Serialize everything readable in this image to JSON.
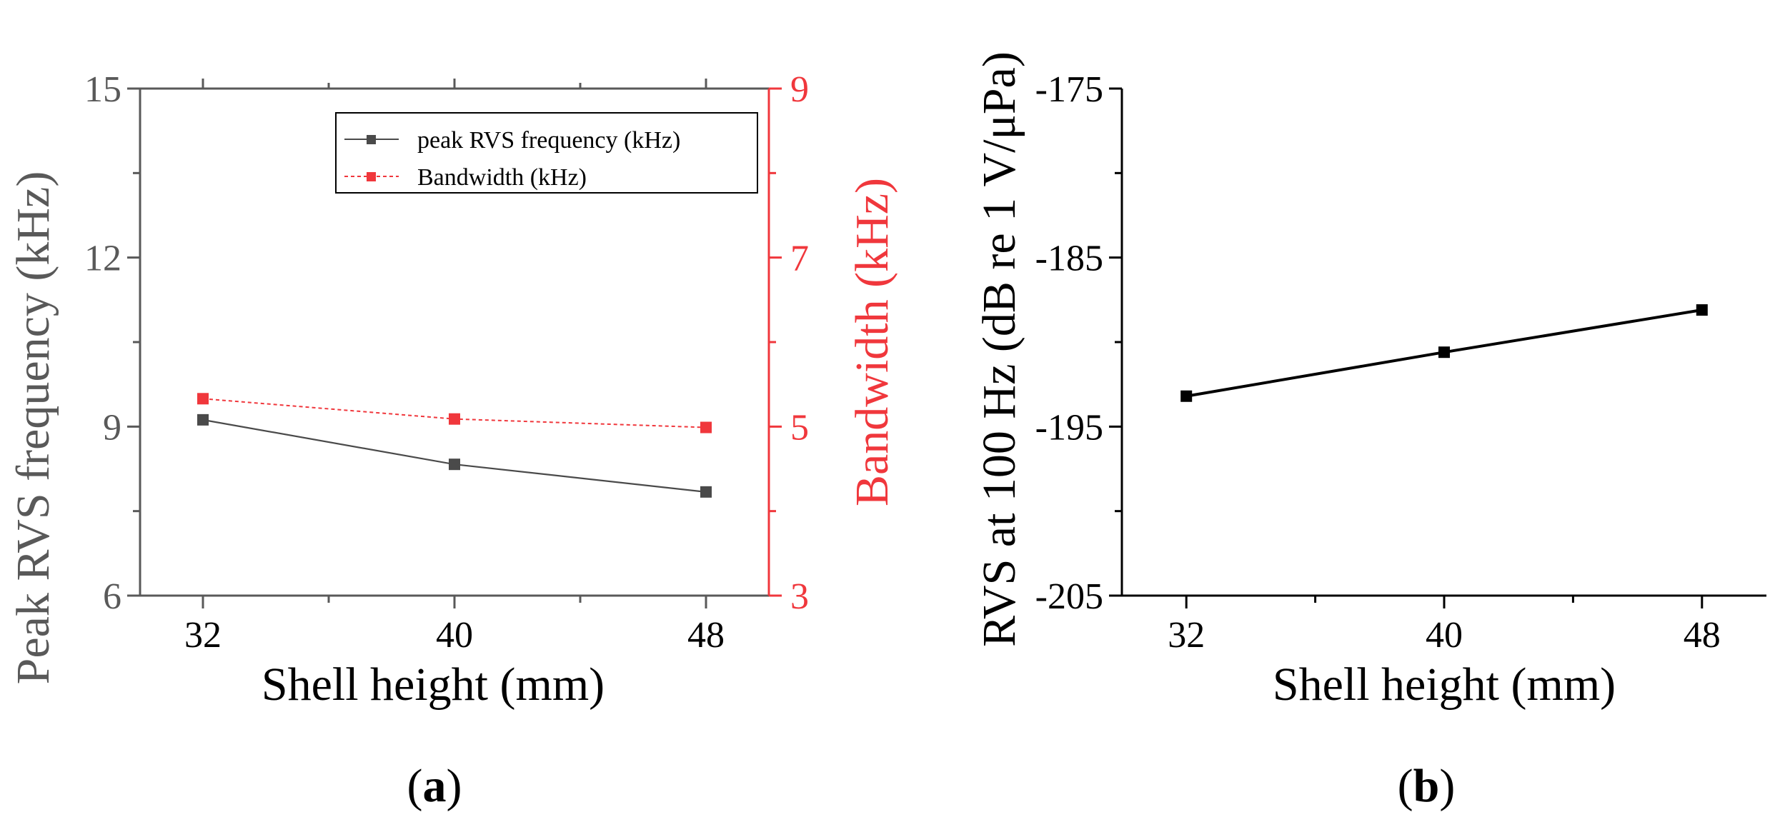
{
  "figure": {
    "panel_labels": [
      {
        "open": "(",
        "letter": "a",
        "close": ")"
      },
      {
        "open": "(",
        "letter": "b",
        "close": ")"
      }
    ]
  },
  "colors": {
    "series_black": "#4a4a4a",
    "series_red": "#f0373c",
    "axis_black": "#000000",
    "axis_red": "#f0373c",
    "label_gray": "#595959"
  },
  "chart_data": [
    {
      "id": "a",
      "type": "line",
      "title": "",
      "xlabel": "Shell height (mm)",
      "ylabel": "Peak RVS frequency (kHz)",
      "y2label": "Bandwidth (kHz)",
      "x": [
        32,
        40,
        48
      ],
      "xlim": [
        30,
        50
      ],
      "xticks": [
        32,
        40,
        48
      ],
      "xminor": [
        36,
        44
      ],
      "ylim": [
        6,
        15
      ],
      "yticks": [
        6,
        9,
        12,
        15
      ],
      "y2lim": [
        3,
        9
      ],
      "y2ticks": [
        3,
        5,
        7,
        9
      ],
      "grid": false,
      "legend_position": "top-right",
      "series": [
        {
          "name": "peak RVS frequency (kHz)",
          "axis": "left",
          "color": "#4a4a4a",
          "line_style": "solid",
          "marker": "square",
          "values": [
            9.12,
            8.33,
            7.84
          ]
        },
        {
          "name": "Bandwidth (kHz)",
          "axis": "right",
          "color": "#f0373c",
          "line_style": "dashed",
          "marker": "square",
          "values": [
            5.33,
            5.09,
            4.99
          ]
        }
      ]
    },
    {
      "id": "b",
      "type": "line",
      "title": "",
      "xlabel": "Shell height (mm)",
      "ylabel": "RVS at 100 Hz (dB re 1 V/μPa)",
      "x": [
        32,
        40,
        48
      ],
      "xlim": [
        30,
        50
      ],
      "xticks": [
        32,
        40,
        48
      ],
      "xminor": [
        36,
        44
      ],
      "ylim": [
        -205,
        -175
      ],
      "yticks": [
        -205,
        -195,
        -185,
        -175
      ],
      "yminor": [
        -200,
        -190,
        -180
      ],
      "grid": false,
      "series": [
        {
          "name": "RVS at 100 Hz",
          "axis": "left",
          "color": "#000000",
          "line_style": "solid",
          "marker": "square",
          "values": [
            -193.2,
            -190.6,
            -188.1
          ]
        }
      ]
    }
  ]
}
